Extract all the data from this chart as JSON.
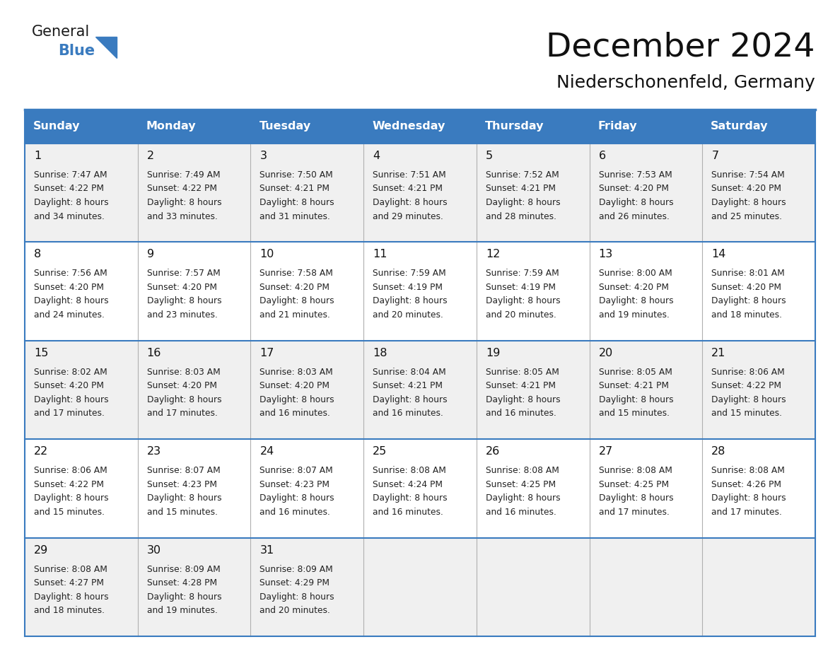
{
  "title": "December 2024",
  "subtitle": "Niederschonenfeld, Germany",
  "header_bg": "#3a7bbf",
  "header_text": "#ffffff",
  "day_names": [
    "Sunday",
    "Monday",
    "Tuesday",
    "Wednesday",
    "Thursday",
    "Friday",
    "Saturday"
  ],
  "row_bg_odd": "#f0f0f0",
  "row_bg_even": "#ffffff",
  "cell_text_color": "#222222",
  "date_color": "#111111",
  "grid_color": "#3a7bbf",
  "logo_general_color": "#1a1a1a",
  "logo_blue_color": "#3a7bbf",
  "figwidth": 11.88,
  "figheight": 9.18,
  "days": [
    {
      "day": 1,
      "col": 0,
      "row": 0,
      "sunrise": "7:47 AM",
      "sunset": "4:22 PM",
      "suffix": "34 minutes."
    },
    {
      "day": 2,
      "col": 1,
      "row": 0,
      "sunrise": "7:49 AM",
      "sunset": "4:22 PM",
      "suffix": "33 minutes."
    },
    {
      "day": 3,
      "col": 2,
      "row": 0,
      "sunrise": "7:50 AM",
      "sunset": "4:21 PM",
      "suffix": "31 minutes."
    },
    {
      "day": 4,
      "col": 3,
      "row": 0,
      "sunrise": "7:51 AM",
      "sunset": "4:21 PM",
      "suffix": "29 minutes."
    },
    {
      "day": 5,
      "col": 4,
      "row": 0,
      "sunrise": "7:52 AM",
      "sunset": "4:21 PM",
      "suffix": "28 minutes."
    },
    {
      "day": 6,
      "col": 5,
      "row": 0,
      "sunrise": "7:53 AM",
      "sunset": "4:20 PM",
      "suffix": "26 minutes."
    },
    {
      "day": 7,
      "col": 6,
      "row": 0,
      "sunrise": "7:54 AM",
      "sunset": "4:20 PM",
      "suffix": "25 minutes."
    },
    {
      "day": 8,
      "col": 0,
      "row": 1,
      "sunrise": "7:56 AM",
      "sunset": "4:20 PM",
      "suffix": "24 minutes."
    },
    {
      "day": 9,
      "col": 1,
      "row": 1,
      "sunrise": "7:57 AM",
      "sunset": "4:20 PM",
      "suffix": "23 minutes."
    },
    {
      "day": 10,
      "col": 2,
      "row": 1,
      "sunrise": "7:58 AM",
      "sunset": "4:20 PM",
      "suffix": "21 minutes."
    },
    {
      "day": 11,
      "col": 3,
      "row": 1,
      "sunrise": "7:59 AM",
      "sunset": "4:19 PM",
      "suffix": "20 minutes."
    },
    {
      "day": 12,
      "col": 4,
      "row": 1,
      "sunrise": "7:59 AM",
      "sunset": "4:19 PM",
      "suffix": "20 minutes."
    },
    {
      "day": 13,
      "col": 5,
      "row": 1,
      "sunrise": "8:00 AM",
      "sunset": "4:20 PM",
      "suffix": "19 minutes."
    },
    {
      "day": 14,
      "col": 6,
      "row": 1,
      "sunrise": "8:01 AM",
      "sunset": "4:20 PM",
      "suffix": "18 minutes."
    },
    {
      "day": 15,
      "col": 0,
      "row": 2,
      "sunrise": "8:02 AM",
      "sunset": "4:20 PM",
      "suffix": "17 minutes."
    },
    {
      "day": 16,
      "col": 1,
      "row": 2,
      "sunrise": "8:03 AM",
      "sunset": "4:20 PM",
      "suffix": "17 minutes."
    },
    {
      "day": 17,
      "col": 2,
      "row": 2,
      "sunrise": "8:03 AM",
      "sunset": "4:20 PM",
      "suffix": "16 minutes."
    },
    {
      "day": 18,
      "col": 3,
      "row": 2,
      "sunrise": "8:04 AM",
      "sunset": "4:21 PM",
      "suffix": "16 minutes."
    },
    {
      "day": 19,
      "col": 4,
      "row": 2,
      "sunrise": "8:05 AM",
      "sunset": "4:21 PM",
      "suffix": "16 minutes."
    },
    {
      "day": 20,
      "col": 5,
      "row": 2,
      "sunrise": "8:05 AM",
      "sunset": "4:21 PM",
      "suffix": "15 minutes."
    },
    {
      "day": 21,
      "col": 6,
      "row": 2,
      "sunrise": "8:06 AM",
      "sunset": "4:22 PM",
      "suffix": "15 minutes."
    },
    {
      "day": 22,
      "col": 0,
      "row": 3,
      "sunrise": "8:06 AM",
      "sunset": "4:22 PM",
      "suffix": "15 minutes."
    },
    {
      "day": 23,
      "col": 1,
      "row": 3,
      "sunrise": "8:07 AM",
      "sunset": "4:23 PM",
      "suffix": "15 minutes."
    },
    {
      "day": 24,
      "col": 2,
      "row": 3,
      "sunrise": "8:07 AM",
      "sunset": "4:23 PM",
      "suffix": "16 minutes."
    },
    {
      "day": 25,
      "col": 3,
      "row": 3,
      "sunrise": "8:08 AM",
      "sunset": "4:24 PM",
      "suffix": "16 minutes."
    },
    {
      "day": 26,
      "col": 4,
      "row": 3,
      "sunrise": "8:08 AM",
      "sunset": "4:25 PM",
      "suffix": "16 minutes."
    },
    {
      "day": 27,
      "col": 5,
      "row": 3,
      "sunrise": "8:08 AM",
      "sunset": "4:25 PM",
      "suffix": "17 minutes."
    },
    {
      "day": 28,
      "col": 6,
      "row": 3,
      "sunrise": "8:08 AM",
      "sunset": "4:26 PM",
      "suffix": "17 minutes."
    },
    {
      "day": 29,
      "col": 0,
      "row": 4,
      "sunrise": "8:08 AM",
      "sunset": "4:27 PM",
      "suffix": "18 minutes."
    },
    {
      "day": 30,
      "col": 1,
      "row": 4,
      "sunrise": "8:09 AM",
      "sunset": "4:28 PM",
      "suffix": "19 minutes."
    },
    {
      "day": 31,
      "col": 2,
      "row": 4,
      "sunrise": "8:09 AM",
      "sunset": "4:29 PM",
      "suffix": "20 minutes."
    }
  ]
}
